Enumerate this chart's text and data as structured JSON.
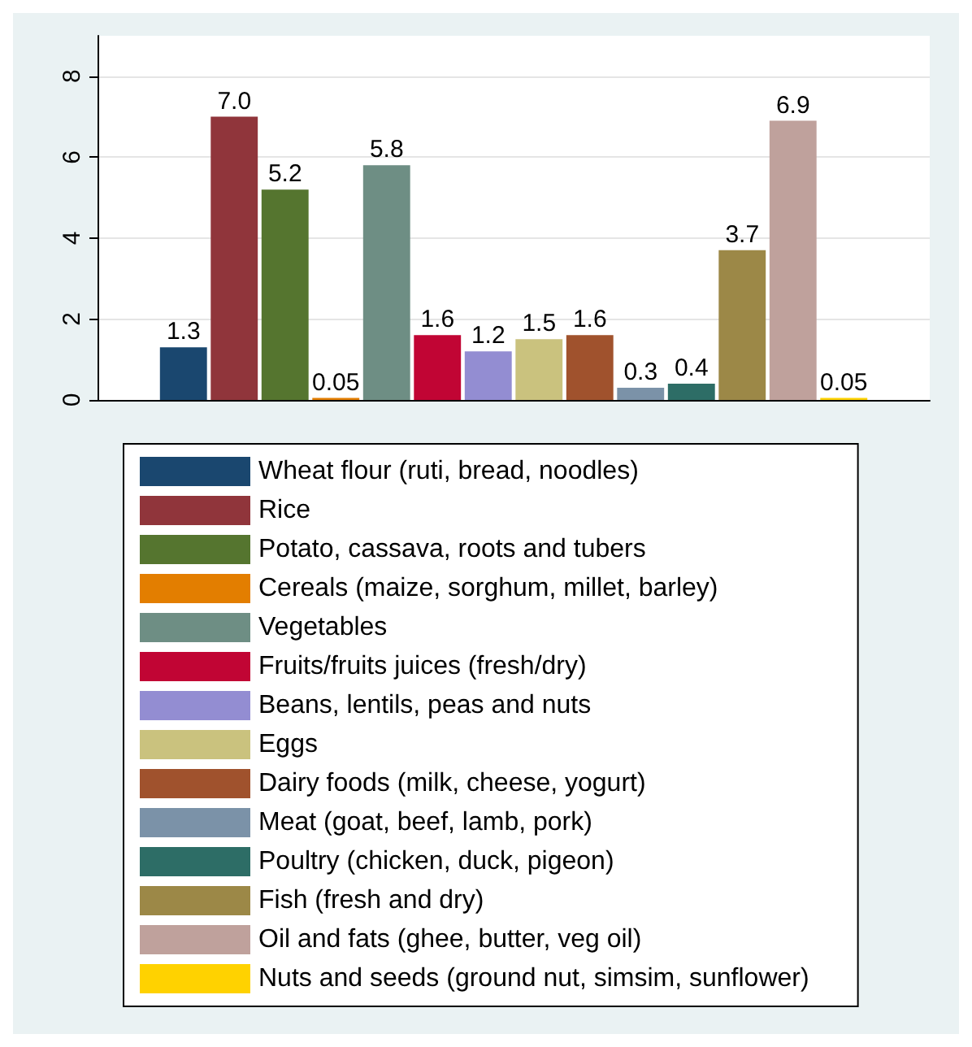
{
  "chart_data": {
    "type": "bar",
    "categories": [
      null
    ],
    "ylim": [
      0,
      9
    ],
    "yticks": [
      0,
      2,
      4,
      6,
      8
    ],
    "grid": "y",
    "legend": "bottom",
    "series": [
      {
        "name": "Wheat flour (ruti, bread, noodles)",
        "color": "#1a476f",
        "values": [
          1.3
        ],
        "value_labels": [
          "1.3"
        ]
      },
      {
        "name": "Rice",
        "color": "#90353b",
        "values": [
          7.0
        ],
        "value_labels": [
          "7.0"
        ]
      },
      {
        "name": "Potato, cassava, roots and tubers",
        "color": "#55752f",
        "values": [
          5.2
        ],
        "value_labels": [
          "5.2"
        ]
      },
      {
        "name": "Cereals (maize, sorghum, millet, barley)",
        "color": "#e37e00",
        "values": [
          0.05
        ],
        "value_labels": [
          "0.05"
        ]
      },
      {
        "name": "Vegetables",
        "color": "#6e8e84",
        "values": [
          5.8
        ],
        "value_labels": [
          "5.8"
        ]
      },
      {
        "name": "Fruits/fruits juices (fresh/dry)",
        "color": "#c10534",
        "values": [
          1.6
        ],
        "value_labels": [
          "1.6"
        ]
      },
      {
        "name": "Beans, lentils, peas and nuts",
        "color": "#938dd2",
        "values": [
          1.2
        ],
        "value_labels": [
          "1.2"
        ]
      },
      {
        "name": "Eggs",
        "color": "#cac27e",
        "values": [
          1.5
        ],
        "value_labels": [
          "1.5"
        ]
      },
      {
        "name": "Dairy foods (milk, cheese, yogurt)",
        "color": "#a0522d",
        "values": [
          1.6
        ],
        "value_labels": [
          "1.6"
        ]
      },
      {
        "name": "Meat (goat, beef, lamb, pork)",
        "color": "#7b92a8",
        "values": [
          0.3
        ],
        "value_labels": [
          "0.3"
        ]
      },
      {
        "name": "Poultry (chicken, duck, pigeon)",
        "color": "#2d6d66",
        "values": [
          0.4
        ],
        "value_labels": [
          "0.4"
        ]
      },
      {
        "name": "Fish (fresh and dry)",
        "color": "#9c8847",
        "values": [
          3.7
        ],
        "value_labels": [
          "3.7"
        ]
      },
      {
        "name": "Oil and fats (ghee, butter, veg oil)",
        "color": "#bfa19c",
        "values": [
          6.9
        ],
        "value_labels": [
          "6.9"
        ]
      },
      {
        "name": "Nuts and seeds (ground nut, simsim, sunflower)",
        "color": "#ffd200",
        "values": [
          0.05
        ],
        "value_labels": [
          "0.05"
        ]
      }
    ]
  }
}
